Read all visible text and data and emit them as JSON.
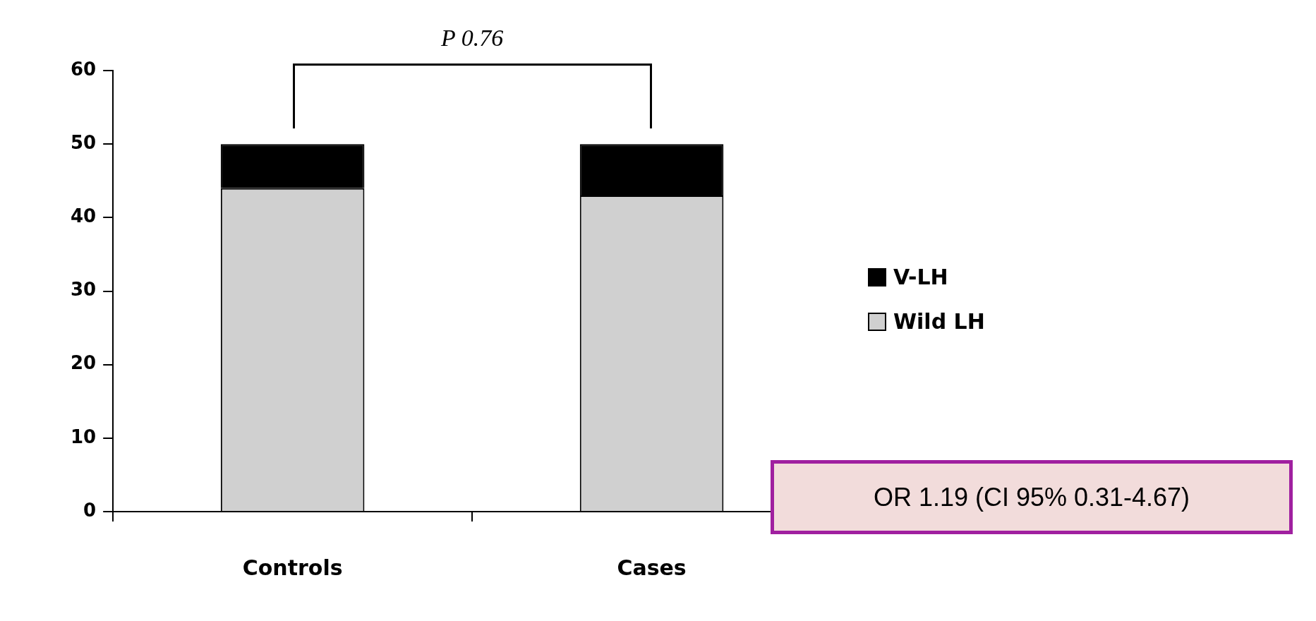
{
  "chart_data": {
    "type": "bar",
    "stacked": true,
    "categories": [
      "Controls",
      "Cases"
    ],
    "series": [
      {
        "name": "Wild LH",
        "color": "#d0d0d0",
        "values": [
          44,
          43
        ]
      },
      {
        "name": "V-LH",
        "color": "#000000",
        "values": [
          6,
          7
        ]
      }
    ],
    "ylim": [
      0,
      60
    ],
    "yticks": [
      0,
      10,
      20,
      30,
      40,
      50,
      60
    ],
    "grid": false,
    "legend": "right",
    "annotations": [
      "P 0.76",
      "OR 1.19 (CI 95% 0.31-4.67)"
    ]
  }
}
